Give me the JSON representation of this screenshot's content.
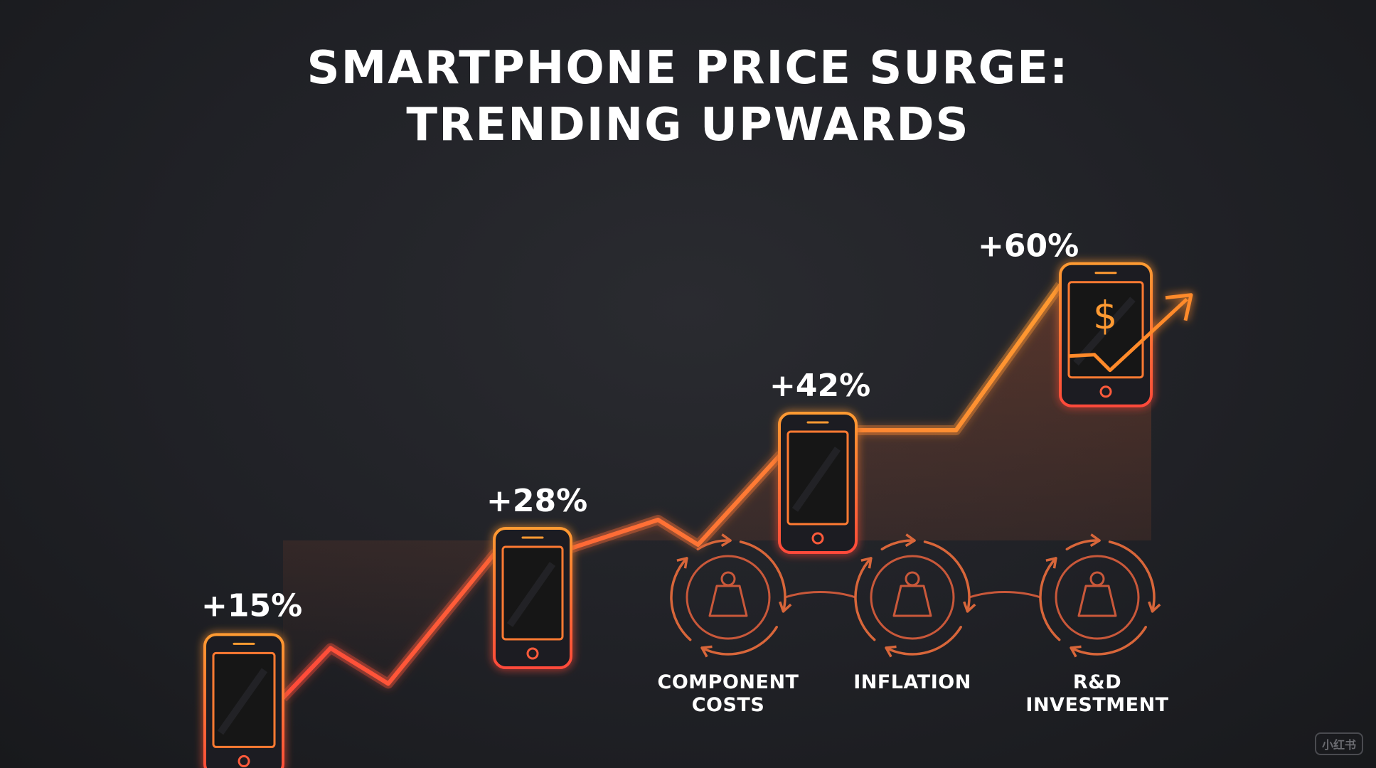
{
  "title": {
    "line1": "SMARTPHONE PRICE SURGE:",
    "line2": "TRENDING UPWARDS"
  },
  "chart_data": {
    "type": "line",
    "title": "SMARTPHONE PRICE SURGE: TRENDING UPWARDS",
    "xlabel": "",
    "ylabel": "",
    "grid": false,
    "legend": "none",
    "ylim": [
      0,
      70
    ],
    "series": [
      {
        "points": [
          {
            "value": 15,
            "label": "+15%"
          },
          {
            "value": 28,
            "label": "+28%"
          },
          {
            "value": 42,
            "label": "+42%"
          },
          {
            "value": 60,
            "label": "+60%"
          }
        ]
      }
    ],
    "icons": [
      "smartphone-icon",
      "smartphone-icon",
      "smartphone-icon",
      "smartphone-price-up-icon"
    ]
  },
  "factors": [
    {
      "icon": "weight-cycle-icon",
      "line1": "COMPONENT",
      "line2": "COSTS"
    },
    {
      "icon": "weight-cycle-icon",
      "line1": "INFLATION",
      "line2": ""
    },
    {
      "icon": "weight-cycle-icon",
      "line1": "R&D",
      "line2": "INVESTMENT"
    }
  ],
  "watermark": "小红书",
  "colors": {
    "background": "#1f2024",
    "line_start": "#ff4a3a",
    "line_end": "#ff9a30",
    "icon_orange": "#ff8a2a",
    "icon_red": "#ff4a3a",
    "factor_stroke": "#c9583a",
    "text": "#ffffff"
  }
}
